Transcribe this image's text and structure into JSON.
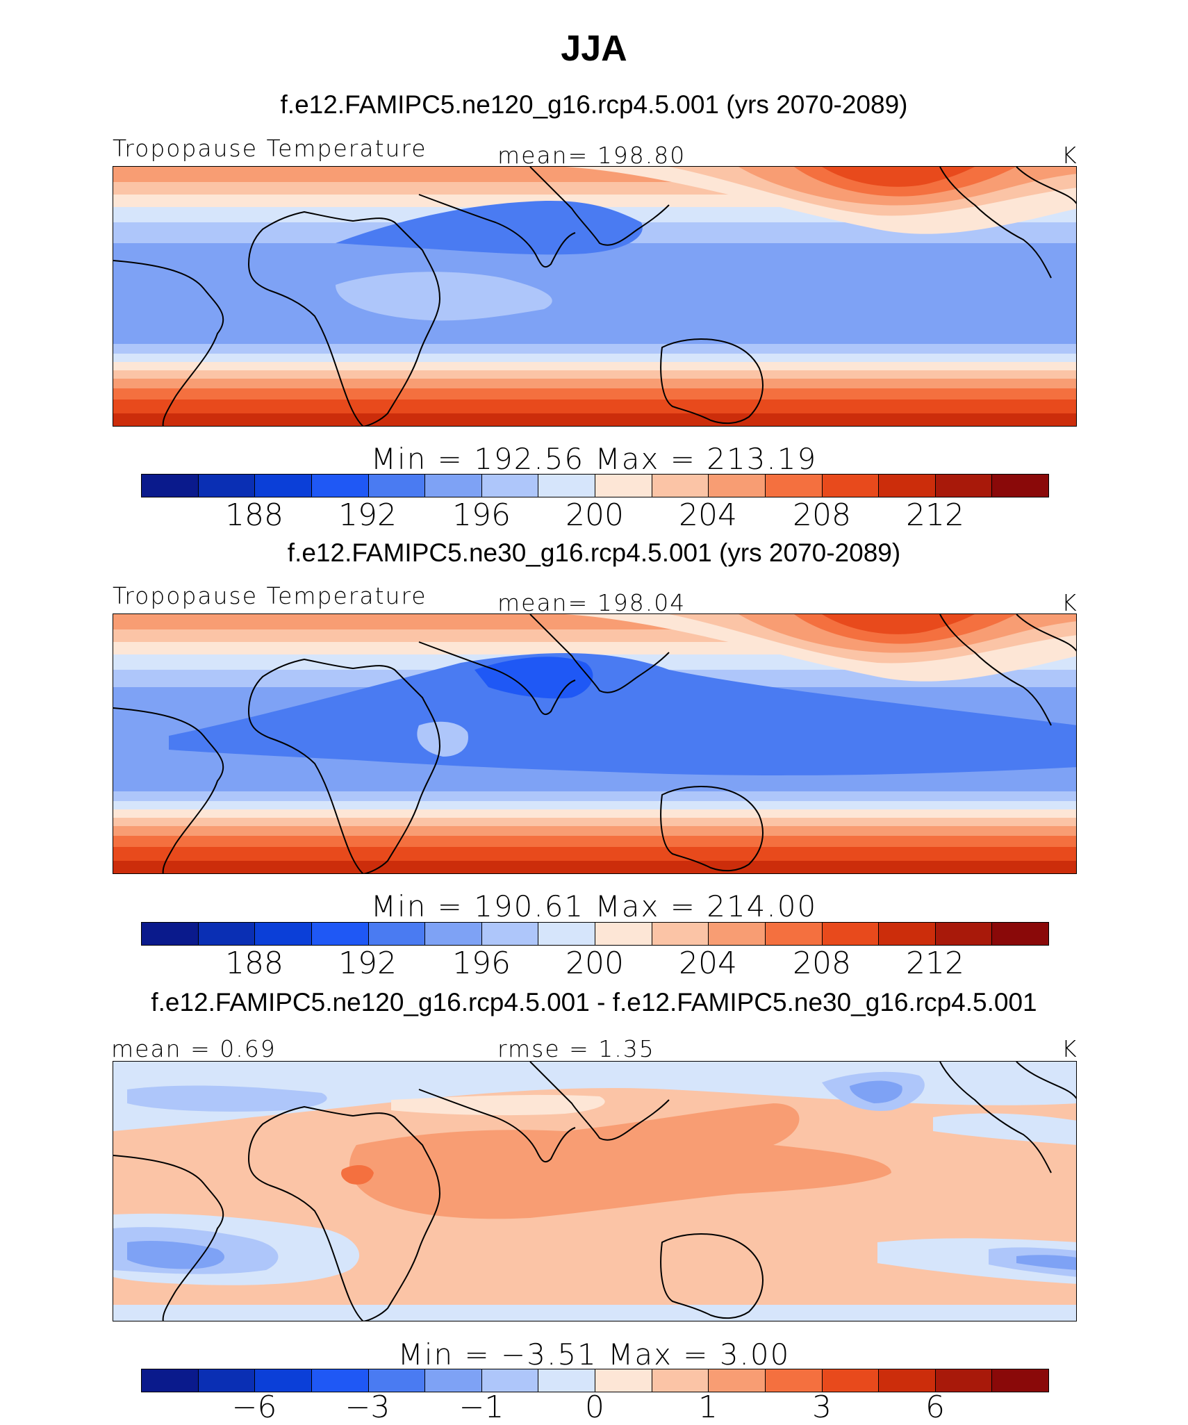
{
  "figure": {
    "title": "JJA",
    "panels": [
      {
        "id": "p1",
        "experiment": "f.e12.FAMIPC5.ne120_g16.rcp4.5.001 (yrs 2070-2089)",
        "left_label": "Tropopause Temperature",
        "center_label": "mean=  198.80",
        "units": "K",
        "stats": "Min  =  192.56  Max  =  213.19",
        "colorbar_labels": [
          "188",
          "192",
          "196",
          "200",
          "204",
          "208",
          "212"
        ]
      },
      {
        "id": "p2",
        "experiment": "f.e12.FAMIPC5.ne30_g16.rcp4.5.001 (yrs 2070-2089)",
        "left_label": "Tropopause Temperature",
        "center_label": "mean=  198.04",
        "units": "K",
        "stats": "Min  =  190.61  Max  =  214.00",
        "colorbar_labels": [
          "188",
          "192",
          "196",
          "200",
          "204",
          "208",
          "212"
        ]
      },
      {
        "id": "p3",
        "experiment": "f.e12.FAMIPC5.ne120_g16.rcp4.5.001 - f.e12.FAMIPC5.ne30_g16.rcp4.5.001",
        "left_label": "mean =     0.69",
        "center_label": "rmse  =     1.35",
        "units": "K",
        "stats": "Min  =    −3.51  Max  =      3.00",
        "colorbar_labels": [
          "−6",
          "−3",
          "−1",
          "0",
          "1",
          "3",
          "6"
        ]
      }
    ],
    "colors": [
      "#0a1a8c",
      "#0a2fb4",
      "#0b3fd8",
      "#1f58f5",
      "#4a7bf2",
      "#7ea2f5",
      "#aec6fa",
      "#d6e5fb",
      "#fde6d6",
      "#fbc4a6",
      "#f89d73",
      "#f4703f",
      "#e84a1c",
      "#cc2d0b",
      "#a8190a",
      "#8a0909"
    ]
  }
}
